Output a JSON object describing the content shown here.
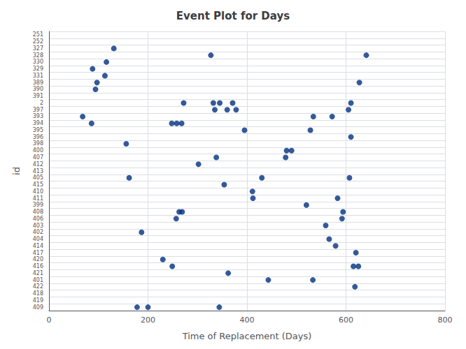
{
  "chart_data": {
    "type": "scatter",
    "title": "Event Plot for Days",
    "xlabel": "Time of Replacement (Days)",
    "ylabel": "id",
    "categories": [
      "251",
      "252",
      "327",
      "328",
      "330",
      "329",
      "331",
      "389",
      "390",
      "391",
      "2",
      "397",
      "393",
      "394",
      "395",
      "396",
      "398",
      "400",
      "407",
      "412",
      "413",
      "405",
      "415",
      "410",
      "411",
      "399",
      "408",
      "406",
      "403",
      "402",
      "404",
      "414",
      "417",
      "420",
      "416",
      "421",
      "401",
      "422",
      "418",
      "419",
      "409"
    ],
    "x": [
      131,
      327,
      641,
      116,
      88,
      113,
      97,
      94,
      272,
      332,
      345,
      371,
      610,
      335,
      360,
      378,
      605,
      68,
      534,
      572,
      86,
      248,
      258,
      268,
      395,
      528,
      610,
      156,
      480,
      490,
      338,
      478,
      302,
      162,
      430,
      607,
      354,
      411,
      412,
      583,
      520,
      263,
      269,
      594,
      257,
      592,
      559,
      187,
      566,
      579,
      620,
      230,
      249,
      615,
      625,
      362,
      443,
      533,
      618,
      627,
      178,
      200,
      344
    ],
    "y": [
      "327",
      "328",
      "328",
      "330",
      "329",
      "331",
      "389",
      "390",
      "2",
      "2",
      "2",
      "2",
      "2",
      "397",
      "397",
      "397",
      "397",
      "393",
      "393",
      "393",
      "394",
      "394",
      "394",
      "394",
      "395",
      "395",
      "396",
      "398",
      "400",
      "400",
      "407",
      "407",
      "412",
      "405",
      "405",
      "405",
      "415",
      "410",
      "411",
      "411",
      "399",
      "408",
      "408",
      "408",
      "406",
      "406",
      "403",
      "402",
      "404",
      "414",
      "417",
      "420",
      "416",
      "416",
      "416",
      "421",
      "401",
      "401",
      "422",
      "389",
      "409",
      "409",
      "409"
    ],
    "color": "#003080",
    "xlim": [
      0,
      800
    ],
    "xticks": [
      0,
      200,
      400,
      600,
      800
    ],
    "grid": true
  }
}
